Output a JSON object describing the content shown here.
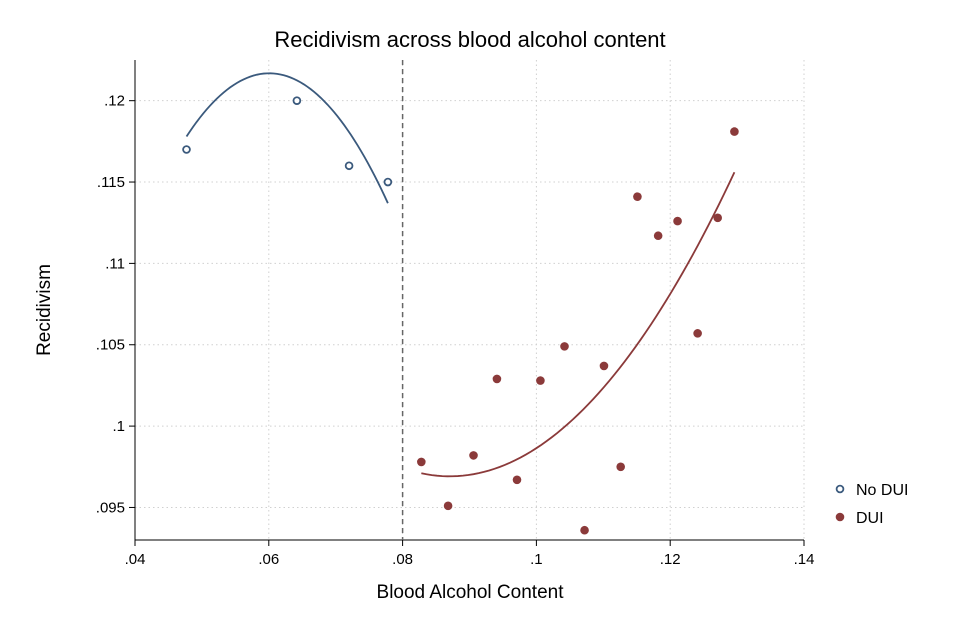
{
  "chart_data": {
    "type": "scatter",
    "title": "Recidivism across blood alcohol content",
    "xlabel": "Blood Alcohol Content",
    "ylabel": "Recidivism",
    "xlim": [
      0.04,
      0.14
    ],
    "ylim": [
      0.093,
      0.1225
    ],
    "x_ticks": [
      0.04,
      0.06,
      0.08,
      0.1,
      0.12,
      0.14
    ],
    "x_tick_labels": [
      ".04",
      ".06",
      ".08",
      ".1",
      ".12",
      ".14"
    ],
    "y_ticks": [
      0.095,
      0.1,
      0.105,
      0.11,
      0.115,
      0.12
    ],
    "y_tick_labels": [
      ".095",
      ".1",
      ".105",
      ".11",
      ".115",
      ".12"
    ],
    "grid": true,
    "cutoff_line": 0.08,
    "legend_position": "right",
    "series": [
      {
        "name": "No DUI",
        "marker": "hollow-circle",
        "color": "#3b5a7d",
        "points": [
          {
            "x": 0.0477,
            "y": 0.117
          },
          {
            "x": 0.0642,
            "y": 0.12
          },
          {
            "x": 0.072,
            "y": 0.116
          },
          {
            "x": 0.0778,
            "y": 0.115
          }
        ],
        "fit": {
          "x_range": [
            0.0477,
            0.0778
          ],
          "y": [
            0.1178,
            0.1215,
            0.1137
          ]
        }
      },
      {
        "name": "DUI",
        "marker": "filled-circle",
        "color": "#8b3a3a",
        "points": [
          {
            "x": 0.0828,
            "y": 0.0978
          },
          {
            "x": 0.0868,
            "y": 0.0951
          },
          {
            "x": 0.0906,
            "y": 0.0982
          },
          {
            "x": 0.0941,
            "y": 0.1029
          },
          {
            "x": 0.0971,
            "y": 0.0967
          },
          {
            "x": 0.1006,
            "y": 0.1028
          },
          {
            "x": 0.1042,
            "y": 0.1049
          },
          {
            "x": 0.1072,
            "y": 0.0936
          },
          {
            "x": 0.1101,
            "y": 0.1037
          },
          {
            "x": 0.1126,
            "y": 0.0975
          },
          {
            "x": 0.1151,
            "y": 0.1141
          },
          {
            "x": 0.1182,
            "y": 0.1117
          },
          {
            "x": 0.1211,
            "y": 0.1126
          },
          {
            "x": 0.1241,
            "y": 0.1057
          },
          {
            "x": 0.1271,
            "y": 0.1128
          },
          {
            "x": 0.1296,
            "y": 0.1181
          }
        ],
        "fit": {
          "x_range": [
            0.0828,
            0.1296
          ],
          "y": [
            0.0971,
            0.1007,
            0.1156
          ]
        }
      }
    ]
  }
}
